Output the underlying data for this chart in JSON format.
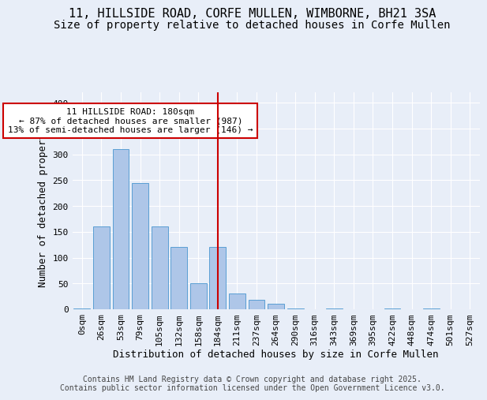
{
  "title_line1": "11, HILLSIDE ROAD, CORFE MULLEN, WIMBORNE, BH21 3SA",
  "title_line2": "Size of property relative to detached houses in Corfe Mullen",
  "xlabel": "Distribution of detached houses by size in Corfe Mullen",
  "ylabel": "Number of detached properties",
  "categories": [
    "0sqm",
    "26sqm",
    "53sqm",
    "79sqm",
    "105sqm",
    "132sqm",
    "158sqm",
    "184sqm",
    "211sqm",
    "237sqm",
    "264sqm",
    "290sqm",
    "316sqm",
    "343sqm",
    "369sqm",
    "395sqm",
    "422sqm",
    "448sqm",
    "474sqm",
    "501sqm",
    "527sqm"
  ],
  "values": [
    2,
    160,
    310,
    245,
    160,
    120,
    50,
    120,
    30,
    18,
    10,
    2,
    0,
    2,
    0,
    0,
    2,
    0,
    2,
    0,
    0
  ],
  "bar_color": "#aec6e8",
  "bar_edge_color": "#5a9fd4",
  "vline_x_idx": 7,
  "vline_color": "#cc0000",
  "annotation_text": "11 HILLSIDE ROAD: 180sqm\n← 87% of detached houses are smaller (987)\n13% of semi-detached houses are larger (146) →",
  "annotation_box_color": "#ffffff",
  "annotation_box_edge_color": "#cc0000",
  "ylim": [
    0,
    420
  ],
  "yticks": [
    0,
    50,
    100,
    150,
    200,
    250,
    300,
    350,
    400
  ],
  "background_color": "#e8eef8",
  "plot_background_color": "#e8eef8",
  "footer_text": "Contains HM Land Registry data © Crown copyright and database right 2025.\nContains public sector information licensed under the Open Government Licence v3.0.",
  "title_fontsize": 11,
  "subtitle_fontsize": 10,
  "axis_label_fontsize": 9,
  "tick_fontsize": 8,
  "annotation_fontsize": 8,
  "footer_fontsize": 7
}
